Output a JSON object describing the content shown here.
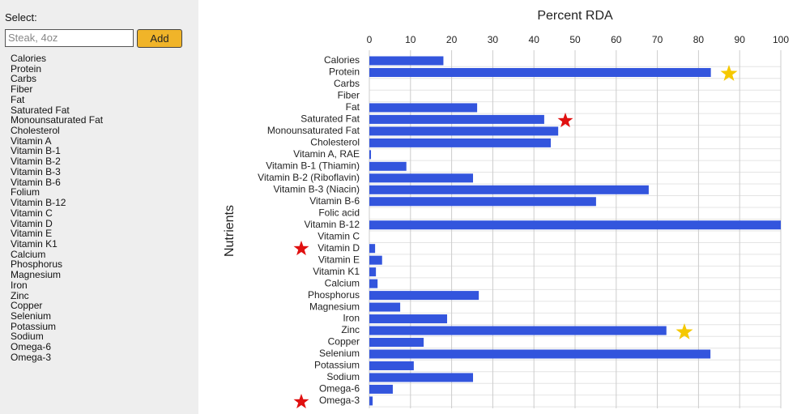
{
  "sidebar": {
    "label": "Select:",
    "input_placeholder": "Steak, 4oz",
    "button": "Add",
    "items": [
      "Calories",
      "Protein",
      "Carbs",
      "Fiber",
      "Fat",
      "Saturated Fat",
      "Monounsaturated Fat",
      "Cholesterol",
      "Vitamin A",
      "Vitamin B-1",
      "Vitamin B-2",
      "Vitamin B-3",
      "Vitamin B-6",
      "Folium",
      "Vitamin B-12",
      "Vitamin C",
      "Vitamin D",
      "Vitamin E",
      "Vitamin K1",
      "Calcium",
      "Phosphorus",
      "Magnesium",
      "Iron",
      "Zinc",
      "Copper",
      "Selenium",
      "Potassium",
      "Sodium",
      "Omega-6",
      "Omega-3"
    ]
  },
  "chart_data": {
    "type": "bar",
    "orientation": "horizontal",
    "title": "Percent RDA",
    "y_label": "Nutrients",
    "categories": [
      "Calories",
      "Protein",
      "Carbs",
      "Fiber",
      "Fat",
      "Saturated Fat",
      "Monounsaturated Fat",
      "Cholesterol",
      "Vitamin A, RAE",
      "Vitamin B-1 (Thiamin)",
      "Vitamin B-2 (Riboflavin)",
      "Vitamin B-3 (Niacin)",
      "Vitamin B-6",
      "Folic acid",
      "Vitamin B-12",
      "Vitamin C",
      "Vitamin D",
      "Vitamin E",
      "Vitamin K1",
      "Calcium",
      "Phosphorus",
      "Magnesium",
      "Iron",
      "Zinc",
      "Copper",
      "Selenium",
      "Potassium",
      "Sodium",
      "Omega-6",
      "Omega-3"
    ],
    "values": [
      18,
      83,
      0,
      0,
      26.2,
      42.5,
      45.9,
      44.1,
      0.4,
      9,
      25.2,
      67.9,
      55.1,
      0,
      100,
      0,
      1.4,
      3.1,
      1.6,
      2,
      26.6,
      7.5,
      18.9,
      72.2,
      13.2,
      82.9,
      10.8,
      25.2,
      5.7,
      0.8
    ],
    "color": "#3355dd",
    "xlim": [
      0,
      100
    ],
    "xticks": [
      0,
      10,
      20,
      30,
      40,
      50,
      60,
      70,
      80,
      90,
      100
    ],
    "grid": true
  }
}
